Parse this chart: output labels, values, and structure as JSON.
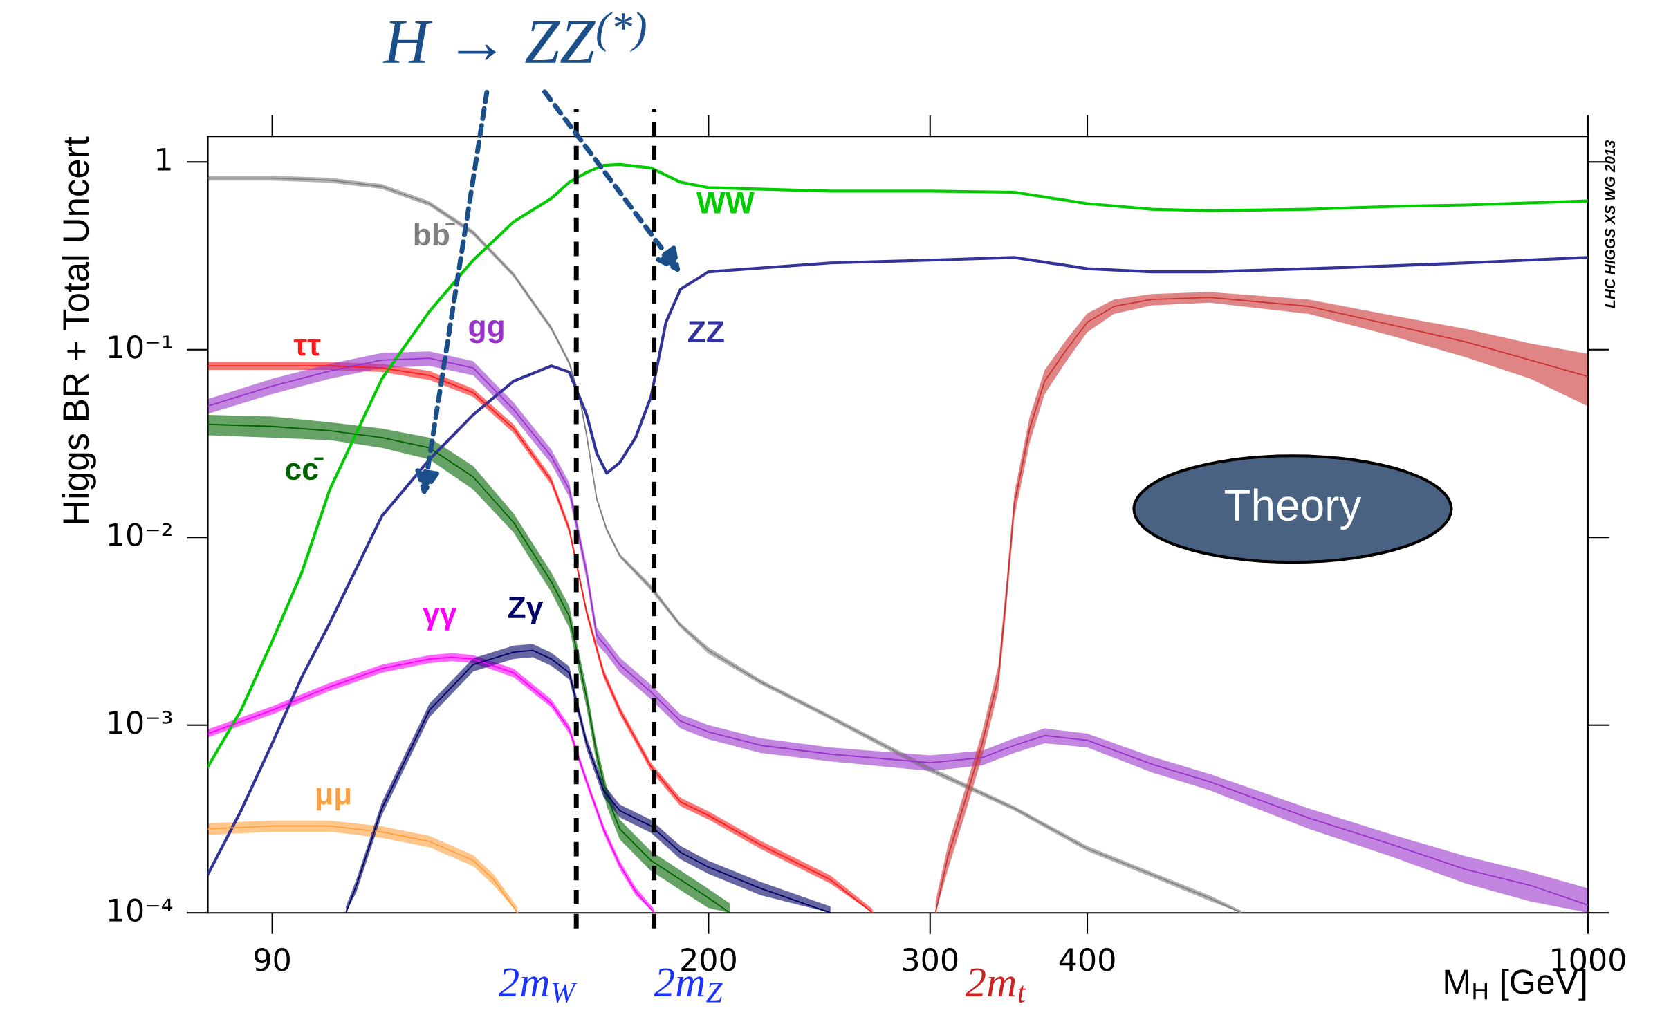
{
  "chart_data": {
    "type": "line",
    "log": "xy",
    "xlim": [
      80,
      1000
    ],
    "ylim": [
      0.0001,
      1.37
    ],
    "xticks": [
      90,
      200,
      300,
      400,
      1000
    ],
    "yticks": [
      {
        "value": 0.0001,
        "label": "10⁻⁴"
      },
      {
        "value": 0.001,
        "label": "10⁻³"
      },
      {
        "value": 0.01,
        "label": "10⁻²"
      },
      {
        "value": 0.1,
        "label": "10⁻¹"
      },
      1
    ],
    "xlabel": "M$_{H}$ [GeV]",
    "ylabel": "Higgs BR + Total Uncert",
    "ref_lines": [
      {
        "axis": "x",
        "value": 157,
        "label": "2m$_{W}$",
        "color": "#000000",
        "line_style": "dashed"
      },
      {
        "axis": "x",
        "value": 181,
        "label": "2m$_{Z}$",
        "color": "#000000",
        "line_style": "dashed"
      }
    ],
    "annotations": [
      "H → ZZ$^{(*)}$",
      "2m$_{t}$",
      "Theory",
      "LHC HIGGS XS WG 2013"
    ],
    "series": [
      {
        "name": "bb̄",
        "color": "#808080",
        "x": [
          80,
          90,
          100,
          110,
          120,
          130,
          140,
          150,
          155,
          158,
          160,
          163,
          166,
          170,
          180,
          190,
          200,
          220,
          250,
          300,
          350,
          400,
          450,
          500,
          530
        ],
        "values": [
          0.82,
          0.82,
          0.8,
          0.74,
          0.6,
          0.42,
          0.25,
          0.13,
          0.085,
          0.055,
          0.035,
          0.016,
          0.011,
          0.008,
          0.0054,
          0.0034,
          0.0025,
          0.0017,
          0.0011,
          0.00058,
          0.00036,
          0.00022,
          0.00016,
          0.00012,
          0.0001
        ],
        "lower": [
          0.795,
          0.795,
          0.776,
          0.718,
          0.582,
          0.407,
          0.243,
          0.126,
          0.0825,
          0.0534,
          0.034,
          0.0155,
          0.0107,
          0.0078,
          0.0052,
          0.0033,
          0.0024,
          0.00165,
          0.00107,
          0.00056,
          0.00035,
          0.000213,
          0.000155,
          0.000116,
          0.0001
        ],
        "upper": [
          0.845,
          0.845,
          0.824,
          0.762,
          0.618,
          0.433,
          0.258,
          0.134,
          0.0876,
          0.0567,
          0.036,
          0.0165,
          0.0113,
          0.0082,
          0.0056,
          0.0035,
          0.0026,
          0.00175,
          0.00113,
          0.0006,
          0.00037,
          0.000227,
          0.000165,
          0.000124,
          0.000103
        ]
      },
      {
        "name": "ττ",
        "color": "#ff1a1a",
        "x": [
          80,
          90,
          100,
          110,
          120,
          130,
          140,
          150,
          155,
          160,
          165,
          170,
          180,
          190,
          200,
          220,
          250,
          270
        ],
        "values": [
          0.082,
          0.082,
          0.082,
          0.08,
          0.073,
          0.059,
          0.038,
          0.02,
          0.011,
          0.004,
          0.0019,
          0.0012,
          0.0006,
          0.00039,
          0.00033,
          0.00023,
          0.00015,
          0.0001
        ],
        "lower": [
          0.078,
          0.078,
          0.078,
          0.076,
          0.069,
          0.056,
          0.036,
          0.019,
          0.0105,
          0.0038,
          0.0018,
          0.00114,
          0.00057,
          0.00037,
          0.000314,
          0.000219,
          0.000143,
          0.0001
        ],
        "upper": [
          0.086,
          0.086,
          0.086,
          0.084,
          0.077,
          0.062,
          0.04,
          0.021,
          0.0116,
          0.0042,
          0.002,
          0.00126,
          0.00063,
          0.00041,
          0.000347,
          0.000242,
          0.000158,
          0.000105
        ]
      },
      {
        "name": "μμ",
        "color": "#ffa040",
        "x": [
          80,
          90,
          100,
          110,
          120,
          130,
          135,
          141
        ],
        "values": [
          0.00028,
          0.00029,
          0.00029,
          0.00027,
          0.00024,
          0.00019,
          0.00015,
          0.0001
        ],
        "lower": [
          0.00026,
          0.00027,
          0.00027,
          0.000251,
          0.000223,
          0.000177,
          0.00014,
          0.0001
        ],
        "upper": [
          0.0003,
          0.00031,
          0.00031,
          0.000289,
          0.000257,
          0.000203,
          0.00016,
          0.000107
        ]
      },
      {
        "name": "cc̄",
        "color": "#006400",
        "x": [
          80,
          90,
          100,
          110,
          120,
          130,
          140,
          150,
          155,
          160,
          163,
          166,
          170,
          180,
          190,
          200,
          208
        ],
        "values": [
          0.04,
          0.039,
          0.037,
          0.034,
          0.03,
          0.021,
          0.012,
          0.0058,
          0.0038,
          0.0014,
          0.0007,
          0.00042,
          0.00028,
          0.00019,
          0.00015,
          0.00012,
          0.0001
        ],
        "lower": [
          0.035,
          0.034,
          0.033,
          0.03,
          0.026,
          0.018,
          0.0106,
          0.0051,
          0.0033,
          0.00123,
          0.00062,
          0.00037,
          0.000246,
          0.000167,
          0.000132,
          0.000106,
          0.0001
        ],
        "upper": [
          0.045,
          0.044,
          0.041,
          0.038,
          0.034,
          0.024,
          0.0134,
          0.0065,
          0.0043,
          0.00157,
          0.00078,
          0.00047,
          0.000314,
          0.000213,
          0.000168,
          0.000134,
          0.000112
        ]
      },
      {
        "name": "gg",
        "color": "#9933cc",
        "x": [
          80,
          90,
          100,
          110,
          120,
          130,
          140,
          150,
          155,
          160,
          163,
          166,
          170,
          180,
          190,
          200,
          220,
          250,
          300,
          330,
          350,
          370,
          400,
          450,
          500,
          600,
          700,
          800,
          900,
          1000
        ],
        "values": [
          0.05,
          0.064,
          0.077,
          0.088,
          0.09,
          0.08,
          0.048,
          0.027,
          0.018,
          0.0065,
          0.003,
          0.0026,
          0.0021,
          0.0015,
          0.00105,
          0.00092,
          0.00078,
          0.0007,
          0.00063,
          0.00067,
          0.00078,
          0.00088,
          0.00083,
          0.00062,
          0.0005,
          0.00032,
          0.00023,
          0.00017,
          0.00014,
          0.00011
        ],
        "lower": [
          0.0455,
          0.058,
          0.07,
          0.08,
          0.082,
          0.073,
          0.0437,
          0.0246,
          0.0164,
          0.0059,
          0.0027,
          0.00237,
          0.00191,
          0.00137,
          0.00096,
          0.00084,
          0.00071,
          0.00064,
          0.00057,
          0.00061,
          0.00071,
          0.0008,
          0.00076,
          0.00056,
          0.00045,
          0.00028,
          0.000198,
          0.000143,
          0.000115,
          0.0001
        ],
        "upper": [
          0.0545,
          0.07,
          0.084,
          0.096,
          0.098,
          0.087,
          0.0523,
          0.0294,
          0.0196,
          0.0071,
          0.0033,
          0.00283,
          0.00229,
          0.00164,
          0.00114,
          0.001,
          0.00085,
          0.00076,
          0.00069,
          0.00073,
          0.00085,
          0.00096,
          0.0009,
          0.00068,
          0.00055,
          0.00036,
          0.00026,
          0.0002,
          0.000165,
          0.000135
        ]
      },
      {
        "name": "γγ",
        "color": "#ff00ff",
        "x": [
          80,
          90,
          100,
          110,
          120,
          125,
          130,
          140,
          150,
          155,
          160,
          165,
          170,
          175,
          181
        ],
        "values": [
          0.0009,
          0.0012,
          0.0016,
          0.002,
          0.00225,
          0.0023,
          0.00225,
          0.0019,
          0.0013,
          0.00095,
          0.0005,
          0.00028,
          0.00018,
          0.00013,
          0.0001
        ],
        "lower": [
          0.00086,
          0.00114,
          0.00152,
          0.0019,
          0.00214,
          0.00219,
          0.00214,
          0.0018,
          0.00124,
          0.0009,
          0.000475,
          0.000266,
          0.000171,
          0.000124,
          0.0001
        ],
        "upper": [
          0.00095,
          0.00126,
          0.00168,
          0.0021,
          0.00236,
          0.00242,
          0.00236,
          0.002,
          0.00137,
          0.001,
          0.000525,
          0.000294,
          0.000189,
          0.000137,
          0.000105
        ]
      },
      {
        "name": "Zγ",
        "color": "#000066",
        "x": [
          103,
          105,
          110,
          120,
          130,
          140,
          145,
          150,
          155,
          160,
          165,
          170,
          180,
          190,
          200,
          220,
          250
        ],
        "values": [
          0.0001,
          0.00014,
          0.00036,
          0.0012,
          0.0021,
          0.00245,
          0.0025,
          0.00225,
          0.0019,
          0.0008,
          0.00045,
          0.00035,
          0.00029,
          0.00021,
          0.000175,
          0.000135,
          0.0001
        ],
        "lower": [
          0.0001,
          0.000129,
          0.000331,
          0.0011,
          0.00193,
          0.00225,
          0.0023,
          0.00207,
          0.00175,
          0.00074,
          0.000414,
          0.000322,
          0.000267,
          0.000193,
          0.000161,
          0.000124,
          0.0001
        ],
        "upper": [
          0.000108,
          0.000151,
          0.000389,
          0.0013,
          0.00227,
          0.00265,
          0.0027,
          0.00243,
          0.00205,
          0.00086,
          0.000486,
          0.000378,
          0.000313,
          0.000227,
          0.000189,
          0.000146,
          0.000108
        ]
      },
      {
        "name": "WW",
        "color": "#00cc00",
        "x": [
          80,
          85,
          90,
          95,
          100,
          110,
          120,
          130,
          140,
          150,
          155,
          160,
          165,
          170,
          180,
          190,
          200,
          250,
          300,
          350,
          400,
          450,
          500,
          600,
          700,
          800,
          1000
        ],
        "values": [
          0.0006,
          0.0012,
          0.0028,
          0.0065,
          0.018,
          0.07,
          0.16,
          0.3,
          0.48,
          0.64,
          0.78,
          0.88,
          0.96,
          0.97,
          0.93,
          0.78,
          0.73,
          0.7,
          0.7,
          0.69,
          0.6,
          0.56,
          0.55,
          0.56,
          0.58,
          0.59,
          0.62
        ]
      },
      {
        "name": "ZZ",
        "color": "#333399",
        "x": [
          80,
          85,
          90,
          95,
          100,
          110,
          120,
          130,
          140,
          150,
          155,
          160,
          163,
          166,
          170,
          175,
          180,
          185,
          190,
          200,
          250,
          300,
          350,
          400,
          450,
          500,
          600,
          700,
          800,
          1000
        ],
        "values": [
          0.00016,
          0.00035,
          0.0008,
          0.0018,
          0.0035,
          0.013,
          0.026,
          0.045,
          0.068,
          0.082,
          0.076,
          0.045,
          0.028,
          0.022,
          0.025,
          0.034,
          0.056,
          0.14,
          0.21,
          0.26,
          0.29,
          0.3,
          0.31,
          0.27,
          0.26,
          0.26,
          0.27,
          0.28,
          0.29,
          0.31
        ]
      },
      {
        "color": "#cc3333",
        "x": [
          303,
          310,
          320,
          330,
          340,
          345,
          350,
          360,
          370,
          385,
          400,
          420,
          450,
          500,
          600,
          700,
          800,
          900,
          1000
        ],
        "values": [
          0.0001,
          0.0002,
          0.0004,
          0.0008,
          0.0018,
          0.005,
          0.015,
          0.038,
          0.068,
          0.1,
          0.14,
          0.17,
          0.185,
          0.19,
          0.17,
          0.135,
          0.11,
          0.088,
          0.072
        ],
        "lower": [
          0.0001,
          0.00017,
          0.00034,
          0.00068,
          0.00153,
          0.0043,
          0.0128,
          0.032,
          0.058,
          0.087,
          0.124,
          0.155,
          0.172,
          0.178,
          0.155,
          0.118,
          0.091,
          0.07,
          0.05
        ],
        "upper": [
          0.000115,
          0.00023,
          0.00046,
          0.00092,
          0.0021,
          0.0058,
          0.0172,
          0.044,
          0.078,
          0.113,
          0.156,
          0.185,
          0.198,
          0.203,
          0.185,
          0.152,
          0.129,
          0.108,
          0.095
        ]
      }
    ]
  }
}
